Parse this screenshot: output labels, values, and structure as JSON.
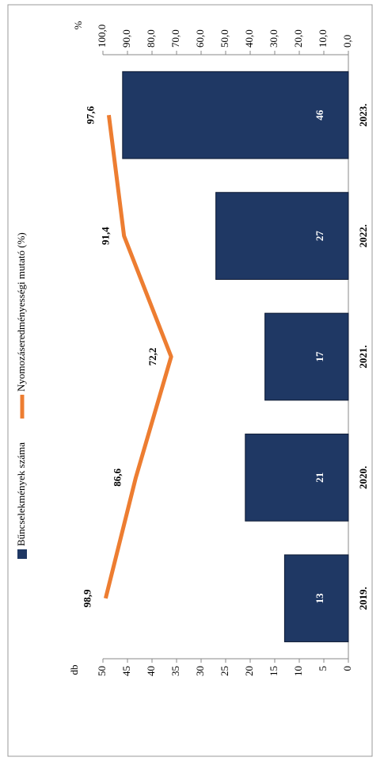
{
  "chart_data": {
    "type": "bar-line",
    "categories": [
      "2019.",
      "2020.",
      "2021.",
      "2022.",
      "2023."
    ],
    "series": [
      {
        "name": "Bűncselekmények száma",
        "type": "bar",
        "color": "#1f3864",
        "values": [
          13,
          21,
          17,
          27,
          46
        ]
      },
      {
        "name": "Nyomozáseredményességi mutató (%)",
        "type": "line",
        "axis": "y2",
        "color": "#ed7d31",
        "values": [
          98.9,
          86.6,
          72.2,
          91.4,
          97.6
        ],
        "value_labels": [
          "98,9",
          "86,6",
          "72,2",
          "91,4",
          "97,6"
        ]
      }
    ],
    "ylabel": "db",
    "y2label": "%",
    "ylim": [
      0,
      50
    ],
    "yticks": [
      0,
      5,
      10,
      15,
      20,
      25,
      30,
      35,
      40,
      45,
      50
    ],
    "y2lim": [
      0,
      100
    ],
    "y2ticks": [
      {
        "value": 0,
        "label": "0,0"
      },
      {
        "value": 10,
        "label": "10,0"
      },
      {
        "value": 20,
        "label": "20,0"
      },
      {
        "value": 30,
        "label": "30,0"
      },
      {
        "value": 40,
        "label": "40,0"
      },
      {
        "value": 50,
        "label": "50,0"
      },
      {
        "value": 60,
        "label": "60,0"
      },
      {
        "value": 70,
        "label": "70,0"
      },
      {
        "value": 80,
        "label": "80,0"
      },
      {
        "value": 90,
        "label": "90,0"
      },
      {
        "value": 100,
        "label": "100,0"
      }
    ],
    "grid": false
  }
}
